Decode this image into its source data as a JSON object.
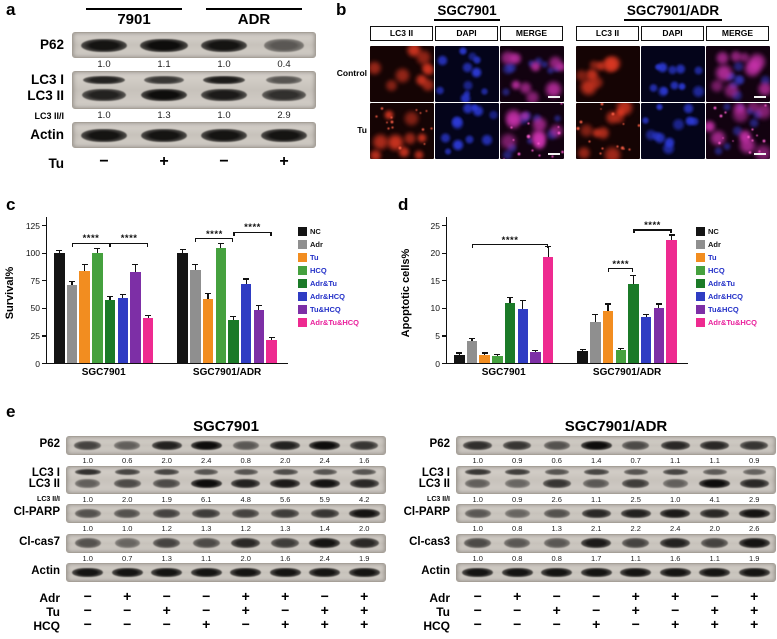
{
  "panel_a": {
    "label": "a",
    "group_headers": [
      {
        "label": "7901",
        "from": 0,
        "to": 1
      },
      {
        "label": "ADR",
        "from": 2,
        "to": 3
      }
    ],
    "rows": [
      {
        "kind": "single",
        "label": "P62",
        "band_levels": [
          0.95,
          1.0,
          0.95,
          0.45
        ],
        "values": [
          "1.0",
          "1.1",
          "1.0",
          "0.4"
        ]
      },
      {
        "kind": "double",
        "label_top": "LC3 I",
        "label_bottom": "LC3 II",
        "band_levels_top": [
          0.85,
          0.7,
          0.9,
          0.5
        ],
        "band_levels_bottom": [
          0.85,
          1.0,
          0.9,
          0.75
        ],
        "ratio_label": "LC3 II/I",
        "values": [
          "1.0",
          "1.3",
          "1.0",
          "2.9"
        ]
      },
      {
        "kind": "single",
        "label": "Actin",
        "band_levels": [
          0.95,
          0.95,
          0.95,
          0.95
        ],
        "values": null
      }
    ],
    "sign_rows": [
      {
        "label": "Tu",
        "signs": [
          "−",
          "+",
          "−",
          "+"
        ]
      }
    ]
  },
  "panel_b": {
    "label": "b",
    "row_labels": [
      "Control",
      "Tu"
    ],
    "groups": [
      {
        "title": "SGC7901",
        "columns": [
          "LC3 II",
          "DAPI",
          "MERGE"
        ]
      },
      {
        "title": "SGC7901/ADR",
        "columns": [
          "LC3 II",
          "DAPI",
          "MERGE"
        ]
      }
    ],
    "channels": {
      "LC3 II": "#e23a24",
      "DAPI": "#2f3de0",
      "MERGE": "#d034b2"
    },
    "punctae_colors": {
      "LC3 II": "#ff6147",
      "MERGE": "#ff5fd2"
    },
    "merge_nuclei_color": "#3b42dd"
  },
  "chart_data": [
    {
      "id": "c",
      "panel_label": "c",
      "type": "bar",
      "title": "",
      "xlabel": "",
      "ylabel": "Survival%",
      "ylim": [
        0,
        125
      ],
      "yticks": [
        0,
        25,
        50,
        75,
        100,
        125
      ],
      "categories": [
        "SGC7901",
        "SGC7901/ADR"
      ],
      "legend_position": "right",
      "series": [
        {
          "name": "NC",
          "color": "#141414",
          "label_color": "#141414",
          "values": [
            100,
            100
          ],
          "errors": [
            2,
            3
          ]
        },
        {
          "name": "Adr",
          "color": "#8f8f8f",
          "label_color": "#141414",
          "values": [
            71,
            84
          ],
          "errors": [
            3,
            5
          ]
        },
        {
          "name": "Tu",
          "color": "#f28d20",
          "label_color": "#2431c8",
          "values": [
            83,
            58
          ],
          "errors": [
            6,
            5
          ]
        },
        {
          "name": "HCQ",
          "color": "#45a13e",
          "label_color": "#2431c8",
          "values": [
            100,
            104
          ],
          "errors": [
            4,
            4
          ]
        },
        {
          "name": "Adr&Tu",
          "color": "#1b7a28",
          "label_color": "#2431c8",
          "values": [
            57,
            39
          ],
          "errors": [
            3,
            3
          ]
        },
        {
          "name": "Adr&HCQ",
          "color": "#2f3cc3",
          "label_color": "#2431c8",
          "values": [
            59,
            72
          ],
          "errors": [
            3,
            4
          ]
        },
        {
          "name": "Tu&HCQ",
          "color": "#7d2fa6",
          "label_color": "#2431c8",
          "values": [
            82,
            48
          ],
          "errors": [
            7,
            4
          ]
        },
        {
          "name": "Adr&Tu&HCQ",
          "color": "#ee2a90",
          "label_color": "#e9219c",
          "values": [
            41,
            21
          ],
          "errors": [
            2,
            2
          ]
        }
      ],
      "significance": [
        {
          "group": 0,
          "from": 1,
          "to": 4,
          "y": 109,
          "text": "****"
        },
        {
          "group": 0,
          "from": 4,
          "to": 7,
          "y": 109,
          "text": "****"
        },
        {
          "group": 1,
          "from": 1,
          "to": 4,
          "y": 113,
          "text": "****"
        },
        {
          "group": 1,
          "from": 4,
          "to": 7,
          "y": 119,
          "text": "****"
        }
      ]
    },
    {
      "id": "d",
      "panel_label": "d",
      "type": "bar",
      "title": "",
      "xlabel": "",
      "ylabel": "Apoptotic cells%",
      "ylim": [
        0,
        25
      ],
      "yticks": [
        0,
        5,
        10,
        15,
        20,
        25
      ],
      "categories": [
        "SGC7901",
        "SGC7901/ADR"
      ],
      "legend_position": "right",
      "series": [
        {
          "name": "NC",
          "color": "#141414",
          "label_color": "#141414",
          "values": [
            1.5,
            2.2
          ],
          "errors": [
            0.3,
            0.3
          ]
        },
        {
          "name": "Adr",
          "color": "#8f8f8f",
          "label_color": "#141414",
          "values": [
            4.0,
            7.5
          ],
          "errors": [
            0.4,
            1.3
          ]
        },
        {
          "name": "Tu",
          "color": "#f28d20",
          "label_color": "#2431c8",
          "values": [
            1.5,
            9.5
          ],
          "errors": [
            0.3,
            1.2
          ]
        },
        {
          "name": "HCQ",
          "color": "#45a13e",
          "label_color": "#2431c8",
          "values": [
            1.3,
            2.3
          ],
          "errors": [
            0.2,
            0.3
          ]
        },
        {
          "name": "Adr&Tu",
          "color": "#1b7a28",
          "label_color": "#2431c8",
          "values": [
            10.8,
            14.3
          ],
          "errors": [
            1.0,
            1.6
          ]
        },
        {
          "name": "Adr&HCQ",
          "color": "#2f3cc3",
          "label_color": "#2431c8",
          "values": [
            9.7,
            8.3
          ],
          "errors": [
            1.6,
            0.5
          ]
        },
        {
          "name": "Tu&HCQ",
          "color": "#7d2fa6",
          "label_color": "#2431c8",
          "values": [
            2.0,
            9.9
          ],
          "errors": [
            0.3,
            0.8
          ]
        },
        {
          "name": "Adr&Tu&HCQ",
          "color": "#ee2a90",
          "label_color": "#e9219c",
          "values": [
            19.2,
            22.2
          ],
          "errors": [
            1.9,
            1.0
          ]
        }
      ],
      "significance": [
        {
          "group": 0,
          "from": 1,
          "to": 7,
          "y": 21.5,
          "text": "****"
        },
        {
          "group": 1,
          "from": 2,
          "to": 4,
          "y": 17.2,
          "text": "****"
        },
        {
          "group": 1,
          "from": 4,
          "to": 7,
          "y": 24.2,
          "text": "****"
        }
      ]
    }
  ],
  "panel_e": {
    "label": "e",
    "blocks": [
      {
        "title": "SGC7901",
        "rows": [
          {
            "kind": "single",
            "label": "P62",
            "band_levels": [
              0.6,
              0.4,
              0.85,
              1.0,
              0.45,
              0.85,
              1.0,
              0.7
            ],
            "values": [
              "1.0",
              "0.6",
              "2.0",
              "2.4",
              "0.8",
              "2.0",
              "2.4",
              "1.6"
            ]
          },
          {
            "kind": "double",
            "label_top": "LC3 I",
            "label_bottom": "LC3 II",
            "band_levels_top": [
              0.75,
              0.6,
              0.6,
              0.5,
              0.5,
              0.55,
              0.5,
              0.5
            ],
            "band_levels_bottom": [
              0.4,
              0.55,
              0.55,
              1.0,
              0.85,
              0.9,
              0.95,
              0.8
            ],
            "ratio_label": "LC3 II/I",
            "values": [
              "1.0",
              "2.0",
              "1.9",
              "6.1",
              "4.8",
              "5.6",
              "5.9",
              "4.2"
            ]
          },
          {
            "kind": "single",
            "label": "Cl-PARP",
            "band_levels": [
              0.5,
              0.5,
              0.6,
              0.65,
              0.6,
              0.65,
              0.7,
              0.95
            ],
            "values": [
              "1.0",
              "1.0",
              "1.2",
              "1.3",
              "1.2",
              "1.3",
              "1.4",
              "2.0"
            ]
          },
          {
            "kind": "single",
            "label": "Cl-cas7",
            "band_levels": [
              0.5,
              0.35,
              0.6,
              0.55,
              0.8,
              0.65,
              0.95,
              0.8
            ],
            "values": [
              "1.0",
              "0.7",
              "1.3",
              "1.1",
              "2.0",
              "1.6",
              "2.4",
              "1.9"
            ]
          },
          {
            "kind": "single",
            "label": "Actin",
            "band_levels": [
              0.95,
              0.95,
              0.95,
              0.95,
              0.95,
              0.95,
              0.95,
              0.95
            ],
            "values": null
          }
        ],
        "sign_rows": [
          {
            "label": "Adr",
            "signs": [
              "−",
              "+",
              "−",
              "−",
              "+",
              "+",
              "−",
              "+"
            ]
          },
          {
            "label": "Tu",
            "signs": [
              "−",
              "−",
              "+",
              "−",
              "+",
              "−",
              "+",
              "+"
            ]
          },
          {
            "label": "HCQ",
            "signs": [
              "−",
              "−",
              "−",
              "+",
              "−",
              "+",
              "+",
              "+"
            ]
          }
        ]
      },
      {
        "title": "SGC7901/ADR",
        "rows": [
          {
            "kind": "single",
            "label": "P62",
            "band_levels": [
              0.75,
              0.7,
              0.5,
              1.0,
              0.55,
              0.8,
              0.8,
              0.7
            ],
            "values": [
              "1.0",
              "0.9",
              "0.6",
              "1.4",
              "0.7",
              "1.1",
              "1.1",
              "0.9"
            ]
          },
          {
            "kind": "double",
            "label_top": "LC3 I",
            "label_bottom": "LC3 II",
            "band_levels_top": [
              0.7,
              0.65,
              0.5,
              0.6,
              0.5,
              0.6,
              0.45,
              0.4
            ],
            "band_levels_bottom": [
              0.4,
              0.35,
              0.7,
              0.45,
              0.65,
              0.4,
              1.0,
              0.8
            ],
            "ratio_label": "LC3 II/I",
            "values": [
              "1.0",
              "0.9",
              "2.6",
              "1.1",
              "2.5",
              "1.0",
              "4.1",
              "2.9"
            ]
          },
          {
            "kind": "single",
            "label": "Cl-PARP",
            "band_levels": [
              0.45,
              0.35,
              0.5,
              0.8,
              0.85,
              0.9,
              0.8,
              0.95
            ],
            "values": [
              "1.0",
              "0.8",
              "1.3",
              "2.1",
              "2.2",
              "2.4",
              "2.0",
              "2.6"
            ]
          },
          {
            "kind": "single",
            "label": "Cl-cas3",
            "band_levels": [
              0.55,
              0.45,
              0.45,
              0.9,
              0.6,
              0.85,
              0.6,
              0.95
            ],
            "values": [
              "1.0",
              "0.8",
              "0.8",
              "1.7",
              "1.1",
              "1.6",
              "1.1",
              "1.9"
            ]
          },
          {
            "kind": "single",
            "label": "Actin",
            "band_levels": [
              0.95,
              0.95,
              0.95,
              0.95,
              0.95,
              0.95,
              0.95,
              0.95
            ],
            "values": null
          }
        ],
        "sign_rows": [
          {
            "label": "Adr",
            "signs": [
              "−",
              "+",
              "−",
              "−",
              "+",
              "+",
              "−",
              "+"
            ]
          },
          {
            "label": "Tu",
            "signs": [
              "−",
              "−",
              "+",
              "−",
              "+",
              "−",
              "+",
              "+"
            ]
          },
          {
            "label": "HCQ",
            "signs": [
              "−",
              "−",
              "−",
              "+",
              "−",
              "+",
              "+",
              "+"
            ]
          }
        ]
      }
    ]
  }
}
